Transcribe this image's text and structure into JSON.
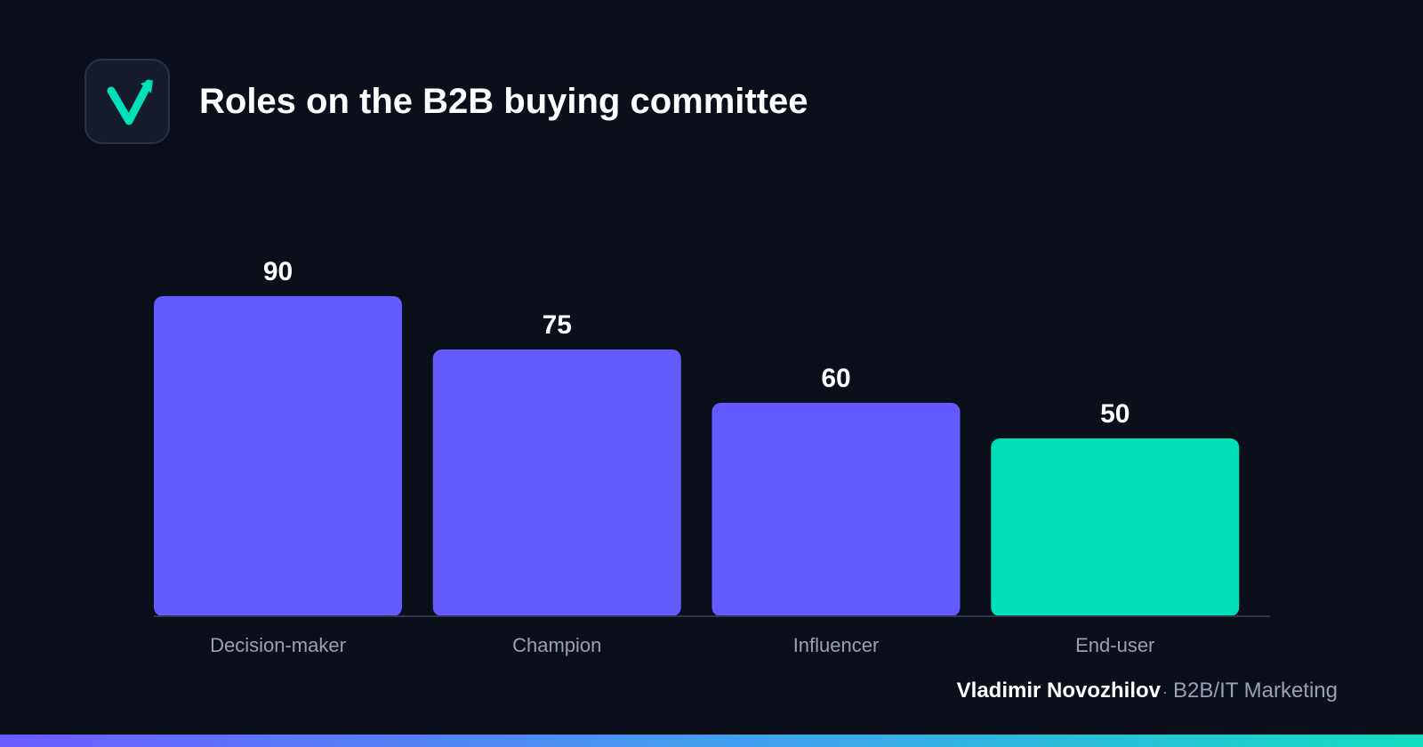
{
  "header": {
    "logo_icon": "check-arrow-icon",
    "title": "Roles on the B2B buying committee"
  },
  "chart_data": {
    "type": "bar",
    "categories": [
      "Decision-maker",
      "Champion",
      "Influencer",
      "End-user"
    ],
    "values": [
      90,
      75,
      60,
      50
    ],
    "data_labels": [
      "90",
      "75",
      "60",
      "50"
    ],
    "colors": [
      "#635bff",
      "#635bff",
      "#635bff",
      "#00e0b8"
    ],
    "ylim": [
      0,
      100
    ],
    "grid": false,
    "legend": "none",
    "title": "",
    "xlabel": "",
    "ylabel": ""
  },
  "footer": {
    "author": "Vladimir Novozhilov",
    "separator": "·",
    "role": "B2B/IT Marketing"
  },
  "colors": {
    "background": "#0b0f19",
    "accent_purple": "#635bff",
    "accent_teal": "#00e0b8",
    "baseline": "#2e3452",
    "muted_text": "#9aa0b4"
  }
}
